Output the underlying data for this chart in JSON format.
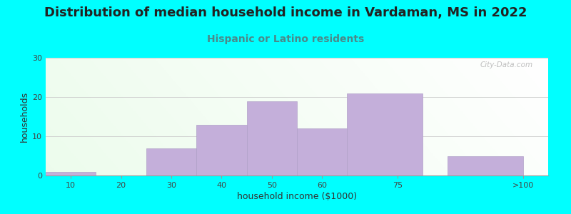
{
  "title": "Distribution of median household income in Vardaman, MS in 2022",
  "subtitle": "Hispanic or Latino residents",
  "xlabel": "household income ($1000)",
  "ylabel": "households",
  "background_color": "#00FFFF",
  "bar_color": "#C4AFDA",
  "bar_edge_color": "#B0A0C8",
  "categories": [
    "10",
    "20",
    "30",
    "40",
    "50",
    "60",
    "75",
    ">100"
  ],
  "values": [
    1,
    0,
    7,
    13,
    19,
    12,
    21,
    5
  ],
  "bar_lefts": [
    5,
    15,
    25,
    35,
    45,
    55,
    65,
    85
  ],
  "bar_widths": [
    10,
    10,
    10,
    10,
    10,
    10,
    15,
    15
  ],
  "xtick_positions": [
    10,
    20,
    30,
    40,
    50,
    60,
    75,
    100
  ],
  "xtick_labels": [
    "10",
    "20",
    "30",
    "40",
    "50",
    "60",
    "75",
    ">100"
  ],
  "xlim": [
    5,
    105
  ],
  "ylim": [
    0,
    30
  ],
  "yticks": [
    0,
    10,
    20,
    30
  ],
  "title_fontsize": 13,
  "subtitle_fontsize": 10,
  "subtitle_color": "#4A8A8A",
  "title_color": "#222222",
  "axis_label_fontsize": 9,
  "tick_fontsize": 8,
  "watermark": "City-Data.com"
}
